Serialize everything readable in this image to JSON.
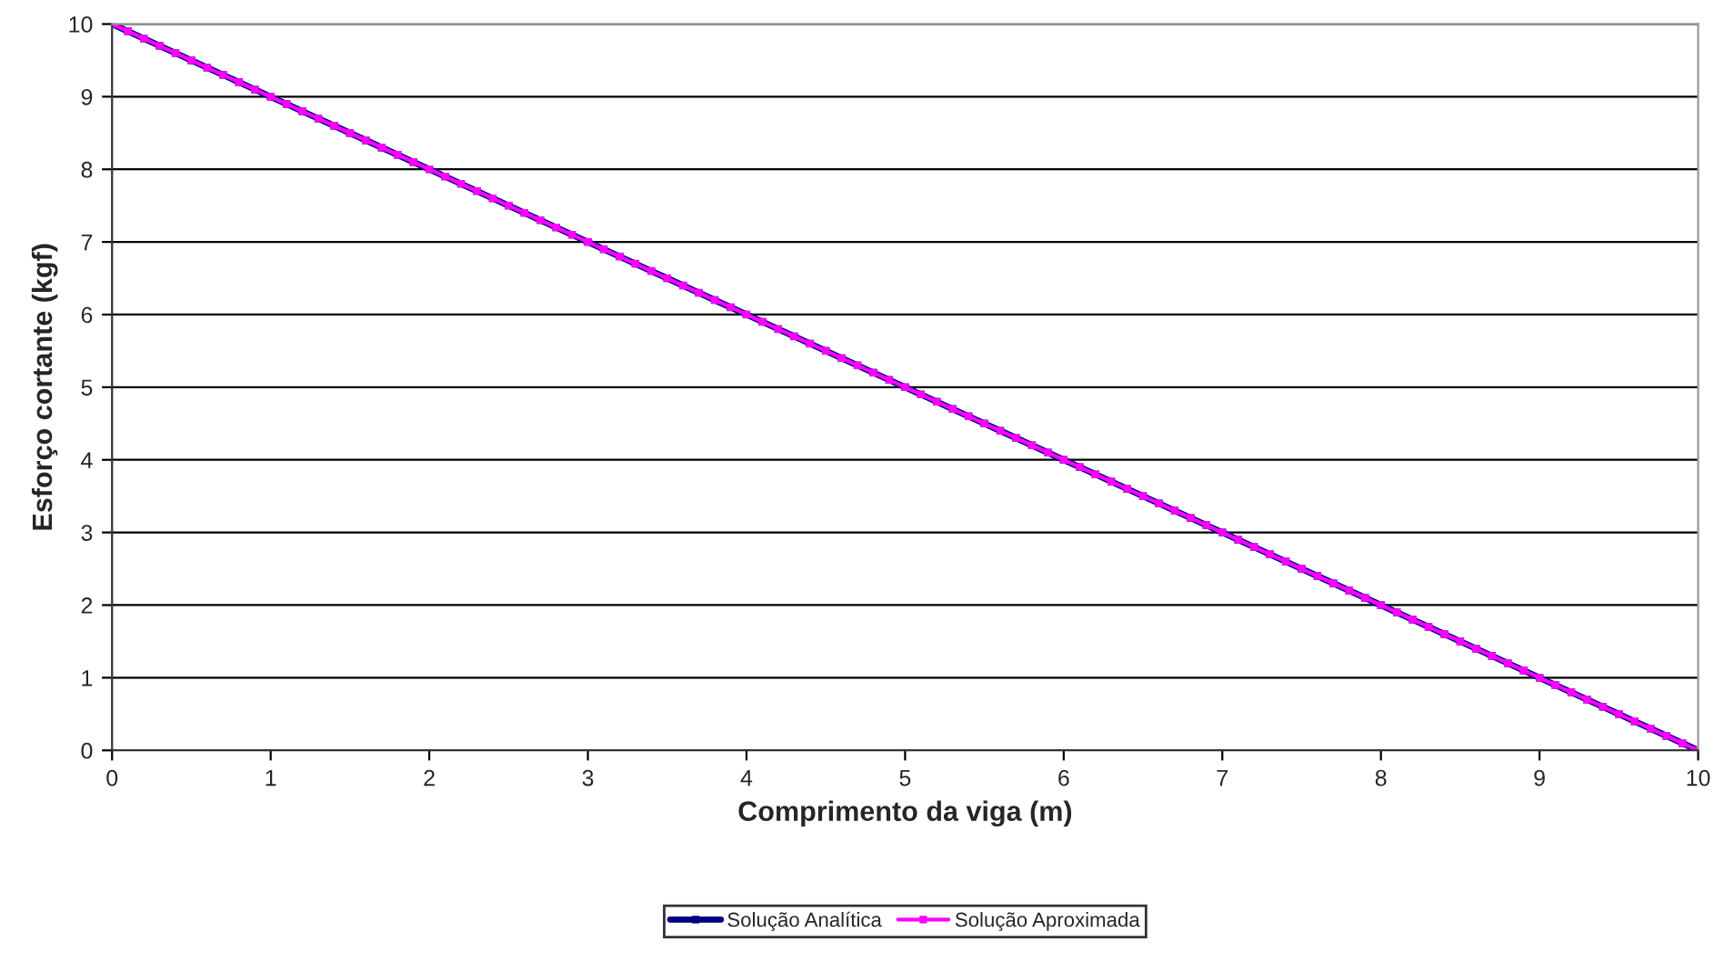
{
  "chart_data": {
    "type": "line",
    "xlabel": "Comprimento da viga (m)",
    "ylabel": "Esforço cortante (kgf)",
    "x": [
      0,
      0.1,
      0.2,
      0.3,
      0.4,
      0.5,
      0.6,
      0.7,
      0.8,
      0.9,
      1,
      1.1,
      1.2,
      1.3,
      1.4,
      1.5,
      1.6,
      1.7,
      1.8,
      1.9,
      2,
      2.1,
      2.2,
      2.3,
      2.4,
      2.5,
      2.6,
      2.7,
      2.8,
      2.9,
      3,
      3.1,
      3.2,
      3.3,
      3.4,
      3.5,
      3.6,
      3.7,
      3.8,
      3.9,
      4,
      4.1,
      4.2,
      4.3,
      4.4,
      4.5,
      4.6,
      4.7,
      4.8,
      4.9,
      5,
      5.1,
      5.2,
      5.3,
      5.4,
      5.5,
      5.6,
      5.7,
      5.8,
      5.9,
      6,
      6.1,
      6.2,
      6.3,
      6.4,
      6.5,
      6.6,
      6.7,
      6.8,
      6.9,
      7,
      7.1,
      7.2,
      7.3,
      7.4,
      7.5,
      7.6,
      7.7,
      7.8,
      7.9,
      8,
      8.1,
      8.2,
      8.3,
      8.4,
      8.5,
      8.6,
      8.7,
      8.8,
      8.9,
      9,
      9.1,
      9.2,
      9.3,
      9.4,
      9.5,
      9.6,
      9.7,
      9.8,
      9.9,
      10
    ],
    "series": [
      {
        "name": "Solução Analítica",
        "color": "#000080",
        "values": [
          10,
          9.9,
          9.8,
          9.7,
          9.6,
          9.5,
          9.4,
          9.3,
          9.2,
          9.1,
          9,
          8.9,
          8.8,
          8.7,
          8.6,
          8.5,
          8.4,
          8.3,
          8.2,
          8.1,
          8,
          7.9,
          7.8,
          7.7,
          7.6,
          7.5,
          7.4,
          7.3,
          7.2,
          7.1,
          7,
          6.9,
          6.8,
          6.7,
          6.6,
          6.5,
          6.4,
          6.3,
          6.2,
          6.1,
          6,
          5.9,
          5.8,
          5.7,
          5.6,
          5.5,
          5.4,
          5.3,
          5.2,
          5.1,
          5,
          4.9,
          4.8,
          4.7,
          4.6,
          4.5,
          4.4,
          4.3,
          4.2,
          4.1,
          4,
          3.9,
          3.8,
          3.7,
          3.6,
          3.5,
          3.4,
          3.3,
          3.2,
          3.1,
          3,
          2.9,
          2.8,
          2.7,
          2.6,
          2.5,
          2.4,
          2.3,
          2.2,
          2.1,
          2,
          1.9,
          1.8,
          1.7,
          1.6,
          1.5,
          1.4,
          1.3,
          1.2,
          1.1,
          1,
          0.9,
          0.8,
          0.7,
          0.6,
          0.5,
          0.4,
          0.3,
          0.2,
          0.1,
          0
        ]
      },
      {
        "name": "Solução Aproximada",
        "color": "#ff00ff",
        "values": [
          10,
          9.9,
          9.8,
          9.7,
          9.6,
          9.5,
          9.4,
          9.3,
          9.2,
          9.1,
          9,
          8.9,
          8.8,
          8.7,
          8.6,
          8.5,
          8.4,
          8.3,
          8.2,
          8.1,
          8,
          7.9,
          7.8,
          7.7,
          7.6,
          7.5,
          7.4,
          7.3,
          7.2,
          7.1,
          7,
          6.9,
          6.8,
          6.7,
          6.6,
          6.5,
          6.4,
          6.3,
          6.2,
          6.1,
          6,
          5.9,
          5.8,
          5.7,
          5.6,
          5.5,
          5.4,
          5.3,
          5.2,
          5.1,
          5,
          4.9,
          4.8,
          4.7,
          4.6,
          4.5,
          4.4,
          4.3,
          4.2,
          4.1,
          4,
          3.9,
          3.8,
          3.7,
          3.6,
          3.5,
          3.4,
          3.3,
          3.2,
          3.1,
          3,
          2.9,
          2.8,
          2.7,
          2.6,
          2.5,
          2.4,
          2.3,
          2.2,
          2.1,
          2,
          1.9,
          1.8,
          1.7,
          1.6,
          1.5,
          1.4,
          1.3,
          1.2,
          1.1,
          1,
          0.9,
          0.8,
          0.7,
          0.6,
          0.5,
          0.4,
          0.3,
          0.2,
          0.1,
          0
        ]
      }
    ],
    "xlim": [
      0,
      10
    ],
    "xticks": [
      0,
      1,
      2,
      3,
      4,
      5,
      6,
      7,
      8,
      9,
      10
    ],
    "ylim": [
      0,
      10
    ],
    "yticks": [
      0,
      1,
      2,
      3,
      4,
      5,
      6,
      7,
      8,
      9,
      10
    ],
    "grid": "y",
    "legend": "bottom",
    "marker": "square",
    "line_style": "solid"
  }
}
